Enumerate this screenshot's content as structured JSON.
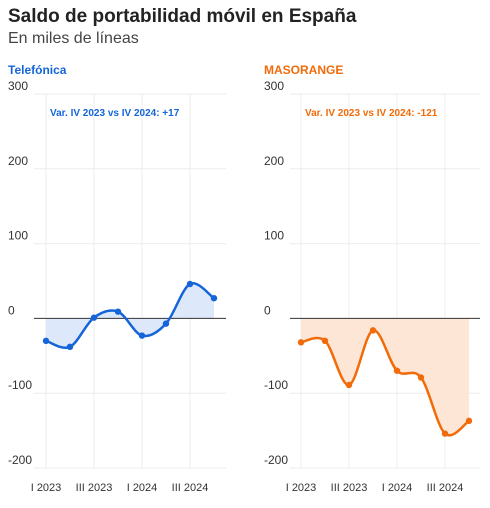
{
  "title": "Saldo de portabilidad móvil en España",
  "subtitle": "En miles de líneas",
  "colors": {
    "telefonica": "#1565d8",
    "masorange": "#f26b0a"
  },
  "chart_data": [
    {
      "type": "line",
      "panel_title": "Telefónica",
      "annotation": "Var. IV 2023 vs IV 2024: +17",
      "x": [
        "I 2023",
        "II 2023",
        "III 2023",
        "IV 2023",
        "I 2024",
        "II 2024",
        "III 2024",
        "IV 2024"
      ],
      "x_tick_labels": [
        "I 2023",
        "III 2023",
        "I 2024",
        "III 2024"
      ],
      "series": [
        {
          "values": [
            -30,
            -38,
            1,
            9,
            -23,
            -7,
            46,
            27
          ]
        }
      ],
      "yticks": [
        300,
        200,
        100,
        0,
        -100,
        -200
      ],
      "ylim": [
        -200,
        300
      ],
      "grid": true,
      "fill_to_zero": true
    },
    {
      "type": "line",
      "panel_title": "MASORANGE",
      "annotation": "Var. IV 2023 vs IV 2024: -121",
      "x": [
        "I 2023",
        "II 2023",
        "III 2023",
        "IV 2023",
        "I 2024",
        "II 2024",
        "III 2024",
        "IV 2024"
      ],
      "x_tick_labels": [
        "I 2023",
        "III 2023",
        "I 2024",
        "III 2024"
      ],
      "series": [
        {
          "values": [
            -32,
            -30,
            -89,
            -16,
            -70,
            -79,
            -154,
            -137
          ]
        }
      ],
      "yticks": [
        300,
        200,
        100,
        0,
        -100,
        -200
      ],
      "ylim": [
        -200,
        300
      ],
      "grid": true,
      "fill_to_zero": true
    }
  ]
}
